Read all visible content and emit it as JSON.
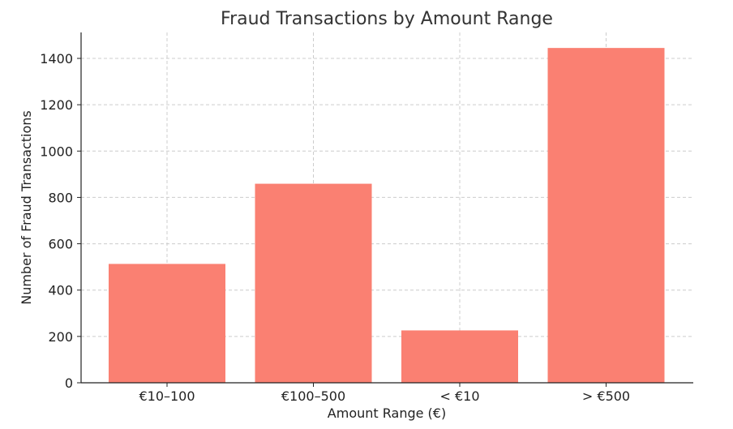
{
  "chart_data": {
    "type": "bar",
    "title": "Fraud Transactions by Amount Range",
    "xlabel": "Amount Range (€)",
    "ylabel": "Number of Fraud Transactions",
    "categories": [
      "€10–100",
      "€100–500",
      "< €10",
      "> €500"
    ],
    "values": [
      513,
      859,
      226,
      1445
    ],
    "ylim": [
      0,
      1512
    ],
    "yticks": [
      0,
      200,
      400,
      600,
      800,
      1000,
      1200,
      1400
    ],
    "grid": true,
    "bar_color": "#fa8072"
  }
}
